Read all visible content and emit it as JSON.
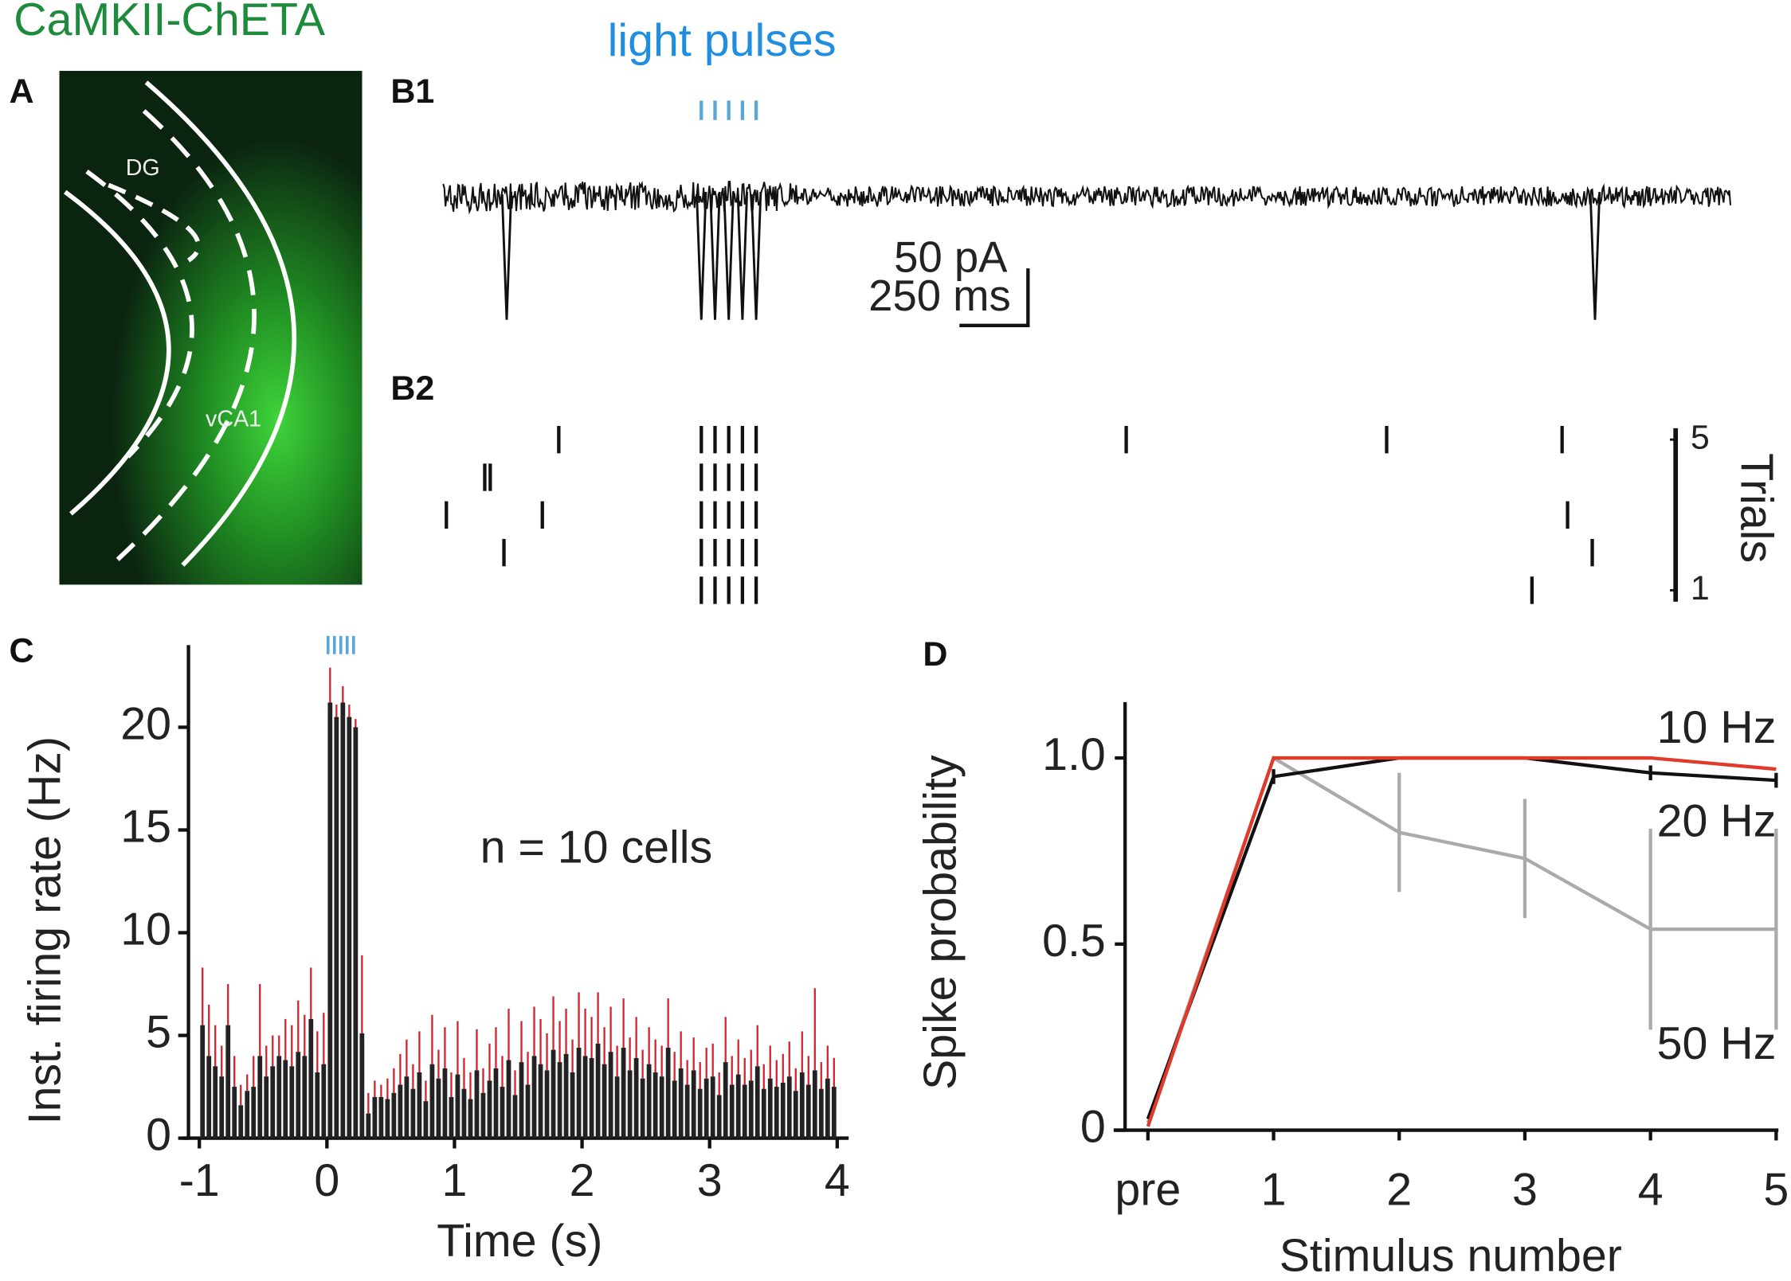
{
  "header": {
    "title": "CaMKII-ChETA"
  },
  "panel_a": {
    "label": "A",
    "regions": [
      "DG",
      "vCA1"
    ]
  },
  "chart_data": [
    {
      "type": "trace",
      "label": "B1",
      "title": "light pulses",
      "light_pulses": [
        0,
        0.05,
        0.1,
        0.15,
        0.2
      ],
      "events": [
        -0.71,
        0,
        0.05,
        0.1,
        0.15,
        0.2,
        3.26
      ],
      "scale_bar": [
        "50 pA",
        "250 ms"
      ]
    },
    {
      "type": "raster",
      "label": "B2",
      "ylabel": "Trials",
      "yticks": [
        1,
        5
      ],
      "spikes": [
        [
          0,
          0.05,
          0.1,
          0.15,
          0.2,
          3.03
        ],
        [
          -0.72,
          0,
          0.05,
          0.1,
          0.15,
          0.2,
          3.25
        ],
        [
          -0.93,
          -0.58,
          0,
          0.05,
          0.1,
          0.15,
          0.2,
          3.16
        ],
        [
          -0.79,
          -0.77,
          0,
          0.05,
          0.1,
          0.15,
          0.2
        ],
        [
          -0.52,
          0,
          0.05,
          0.1,
          0.15,
          0.2,
          1.55,
          2.5,
          3.14
        ]
      ]
    },
    {
      "type": "histogram",
      "label": "C",
      "xlabel": "Time (s)",
      "ylabel": "Inst. firing rate (Hz)",
      "annotation": "n = 10 cells",
      "color": "#222222",
      "error_color": "#d9202a",
      "light_pulses": [
        0,
        0.05,
        0.1,
        0.15,
        0.2
      ],
      "xlim": [
        -1.13,
        4.09
      ],
      "ylim": [
        0,
        24
      ],
      "xticks": [
        -1,
        0,
        1,
        2,
        3,
        4
      ],
      "yticks": [
        0,
        5,
        10,
        15,
        20
      ],
      "bins": [
        -1,
        -0.95,
        -0.9,
        -0.85,
        -0.8,
        -0.75,
        -0.7,
        -0.65,
        -0.6,
        -0.55,
        -0.5,
        -0.45,
        -0.4,
        -0.35,
        -0.3,
        -0.25,
        -0.2,
        -0.15,
        -0.1,
        -0.05,
        0,
        0.05,
        0.1,
        0.15,
        0.2,
        0.25,
        0.3,
        0.35,
        0.4,
        0.45,
        0.5,
        0.55,
        0.6,
        0.65,
        0.7,
        0.75,
        0.8,
        0.85,
        0.9,
        0.95,
        1,
        1.05,
        1.1,
        1.15,
        1.2,
        1.25,
        1.3,
        1.35,
        1.4,
        1.45,
        1.5,
        1.55,
        1.6,
        1.65,
        1.7,
        1.75,
        1.8,
        1.85,
        1.9,
        1.95,
        2,
        2.05,
        2.1,
        2.15,
        2.2,
        2.25,
        2.3,
        2.35,
        2.4,
        2.45,
        2.5,
        2.55,
        2.6,
        2.65,
        2.7,
        2.75,
        2.8,
        2.85,
        2.9,
        2.95,
        3,
        3.05,
        3.1,
        3.15,
        3.2,
        3.25,
        3.3,
        3.35,
        3.4,
        3.45,
        3.5,
        3.55,
        3.6,
        3.65,
        3.7,
        3.75,
        3.8,
        3.85,
        3.9,
        3.95,
        4
      ],
      "values": [
        5.5,
        4.0,
        3.5,
        3.0,
        5.5,
        2.5,
        1.6,
        2.3,
        2.5,
        4.0,
        3.0,
        3.5,
        4.0,
        3.8,
        3.5,
        4.2,
        4.0,
        5.8,
        3.2,
        3.6,
        21.2,
        20.5,
        21.2,
        20.5,
        20.0,
        5.1,
        1.2,
        2.0,
        2.0,
        1.9,
        2.2,
        2.6,
        3.0,
        2.4,
        3.2,
        1.8,
        3.6,
        2.9,
        3.4,
        2.0,
        3.1,
        2.4,
        1.9,
        3.3,
        2.2,
        2.8,
        3.4,
        2.5,
        3.8,
        2.1,
        3.7,
        2.6,
        4.0,
        3.6,
        3.3,
        4.3,
        3.7,
        4.1,
        3.2,
        4.4,
        4.0,
        3.9,
        4.6,
        3.6,
        4.2,
        3.0,
        4.4,
        3.3,
        3.9,
        2.9,
        3.6,
        3.2,
        3.0,
        4.4,
        2.8,
        3.4,
        2.6,
        3.3,
        2.4,
        2.9,
        3.0,
        2.1,
        3.7,
        2.6,
        3.1,
        2.6,
        2.8,
        3.5,
        2.4,
        2.9,
        2.5,
        2.7,
        3.0,
        2.3,
        3.2,
        2.6,
        3.3,
        2.4,
        2.9,
        2.5
      ],
      "errors": [
        2.8,
        2.5,
        2.0,
        1.5,
        2.0,
        1.5,
        1.0,
        0.8,
        1.5,
        3.5,
        1.5,
        1.5,
        1.0,
        2.0,
        2.0,
        2.5,
        2.0,
        2.5,
        2.0,
        2.5,
        1.7,
        0.6,
        0.8,
        0.6,
        0.4,
        3.8,
        1.0,
        0.8,
        0.6,
        1.0,
        1.2,
        1.5,
        1.8,
        1.2,
        2.0,
        1.0,
        2.4,
        1.4,
        2.0,
        1.2,
        2.6,
        1.5,
        1.3,
        2.0,
        1.2,
        1.8,
        2.0,
        1.5,
        2.5,
        1.2,
        2.0,
        1.6,
        2.4,
        2.2,
        1.8,
        2.6,
        2.0,
        2.2,
        1.6,
        2.7,
        2.3,
        2.0,
        2.5,
        1.8,
        2.2,
        1.5,
        2.4,
        1.6,
        2.0,
        1.4,
        1.8,
        1.6,
        1.5,
        2.4,
        1.4,
        1.8,
        1.2,
        1.6,
        1.3,
        1.5,
        1.6,
        1.1,
        2.2,
        1.4,
        1.7,
        1.3,
        1.5,
        2.0,
        1.2,
        1.6,
        1.3,
        1.4,
        1.7,
        1.1,
        2.0,
        1.4,
        4.0,
        1.3,
        1.6,
        1.4
      ]
    },
    {
      "type": "line",
      "label": "D",
      "xlabel": "Stimulus number",
      "ylabel": "Spike probability",
      "categories": [
        "pre",
        "1",
        "2",
        "3",
        "4",
        "5"
      ],
      "ylim": [
        0,
        1.15
      ],
      "yticks": [
        0,
        0.5,
        {
          "value": 1,
          "label": "1.0"
        }
      ],
      "series": [
        {
          "name": "10 Hz",
          "color": "#e03a2a",
          "values": [
            0.01,
            1,
            1,
            1,
            1,
            0.97
          ]
        },
        {
          "name": "20 Hz",
          "color": "#111111",
          "values": [
            0.03,
            0.95,
            1,
            1,
            0.96,
            0.94
          ],
          "errors": [
            0,
            0.02,
            0,
            0,
            0.02,
            0.02
          ]
        },
        {
          "name": "50 Hz",
          "color": "#aaaaaa",
          "values": [
            0.02,
            1,
            0.8,
            0.73,
            0.54,
            0.54
          ],
          "errors": [
            0,
            0,
            0.16,
            0.16,
            0.27,
            0.27
          ]
        }
      ]
    }
  ]
}
